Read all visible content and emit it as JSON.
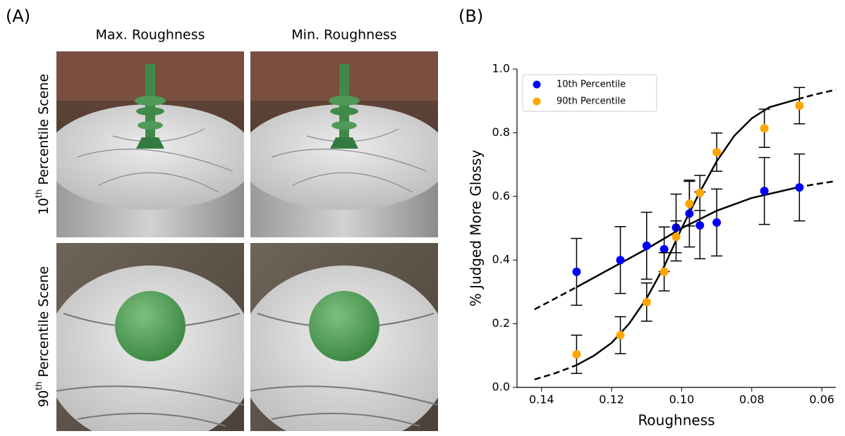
{
  "panel_a": {
    "label": "(A)",
    "column_titles": [
      "Max. Roughness",
      "Min. Roughness"
    ],
    "row_labels": [
      {
        "number": "10",
        "suffix": "th",
        "text": "Percentile Scene"
      },
      {
        "number": "90",
        "suffix": "th",
        "text": "Percentile Scene"
      }
    ]
  },
  "chart_data": {
    "type": "scatter",
    "panel_label": "(B)",
    "x_label": "Roughness",
    "y_label": "% Judged More Glossy",
    "xlim": [
      0.147,
      0.056
    ],
    "ylim": [
      0,
      1
    ],
    "xticks": [
      0.14,
      0.12,
      {
        "value": 0.1,
        "label": "0.10"
      },
      0.08,
      0.06
    ],
    "yticks": [
      {
        "value": 0,
        "label": "0.0"
      },
      0.2,
      0.4,
      0.6,
      0.8,
      {
        "value": 1,
        "label": "1.0"
      }
    ],
    "legend": "upper-left",
    "series": [
      {
        "name": "10th Percentile",
        "color": "#0000ff",
        "x": [
          0.13,
          0.1175,
          0.11,
          0.105,
          0.1016,
          0.0978,
          0.0948,
          0.09,
          0.0764,
          0.0664
        ],
        "values": [
          0.363,
          0.4,
          0.445,
          0.434,
          0.502,
          0.546,
          0.509,
          0.518,
          0.617,
          0.628
        ],
        "errors": [
          0.105,
          0.105,
          0.105,
          0.07,
          0.105,
          0.105,
          0.105,
          0.105,
          0.105,
          0.105
        ]
      },
      {
        "name": "90th Percentile",
        "color": "#ffa500",
        "x": [
          0.13,
          0.1175,
          0.11,
          0.105,
          0.1016,
          0.0978,
          0.0948,
          0.09,
          0.0764,
          0.0664
        ],
        "values": [
          0.104,
          0.164,
          0.268,
          0.363,
          0.473,
          0.577,
          0.611,
          0.739,
          0.814,
          0.885
        ],
        "errors": [
          0.06,
          0.058,
          0.06,
          0.06,
          0.05,
          0.07,
          0.055,
          0.06,
          0.06,
          0.057
        ]
      }
    ],
    "fits": [
      {
        "color": "#000000",
        "style": "dashed",
        "x": [
          0.142,
          0.136,
          0.13
        ],
        "values": [
          0.245,
          0.28,
          0.315
        ]
      },
      {
        "color": "#000000",
        "style": "solid",
        "x": [
          0.13,
          0.12,
          0.11,
          0.1,
          0.09,
          0.08,
          0.067
        ],
        "values": [
          0.315,
          0.375,
          0.435,
          0.5,
          0.555,
          0.595,
          0.628
        ]
      },
      {
        "color": "#000000",
        "style": "dashed",
        "x": [
          0.067,
          0.062,
          0.056
        ],
        "values": [
          0.628,
          0.638,
          0.648
        ]
      },
      {
        "color": "#000000",
        "style": "dashed",
        "x": [
          0.142,
          0.136,
          0.13
        ],
        "values": [
          0.025,
          0.045,
          0.07
        ]
      },
      {
        "color": "#000000",
        "style": "solid",
        "x": [
          0.13,
          0.125,
          0.12,
          0.115,
          0.11,
          0.105,
          0.1,
          0.095,
          0.09,
          0.085,
          0.08,
          0.075,
          0.067
        ],
        "values": [
          0.07,
          0.1,
          0.14,
          0.2,
          0.28,
          0.38,
          0.5,
          0.61,
          0.71,
          0.79,
          0.845,
          0.88,
          0.905
        ]
      },
      {
        "color": "#000000",
        "style": "dashed",
        "x": [
          0.067,
          0.062,
          0.056
        ],
        "values": [
          0.905,
          0.92,
          0.935
        ]
      }
    ]
  }
}
